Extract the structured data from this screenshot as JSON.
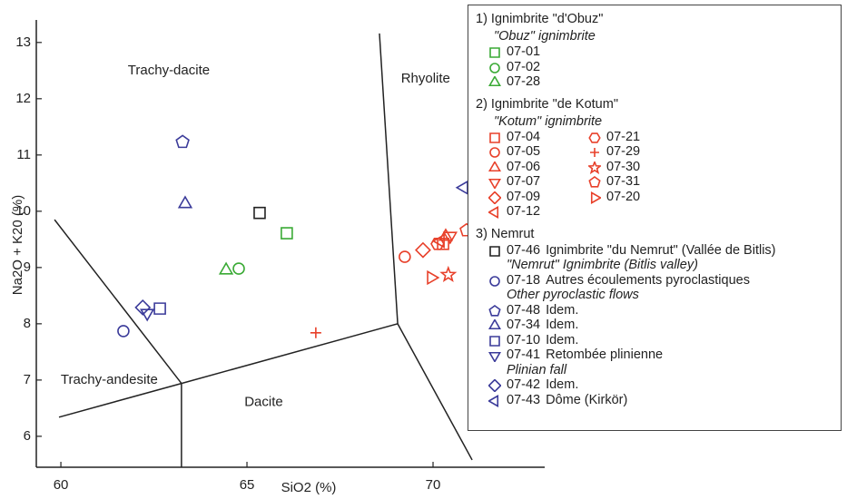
{
  "chart_data": {
    "type": "scatter",
    "xlabel": "SiO2 (%)",
    "ylabel": "Na2O + K20 (%)",
    "xlim": [
      59.34,
      73
    ],
    "ylim": [
      5.45,
      13.4
    ],
    "xticks": [
      60,
      65,
      70
    ],
    "yticks": [
      6,
      7,
      8,
      9,
      10,
      11,
      12,
      13
    ],
    "boundaries": [
      {
        "x": [
          59.83,
          63.24,
          63.24
        ],
        "y": [
          9.85,
          6.94,
          5.45
        ]
      },
      {
        "x": [
          59.95,
          63.24,
          69.05,
          68.56
        ],
        "y": [
          6.34,
          6.94,
          8.0,
          13.16
        ]
      },
      {
        "x": [
          69.05,
          71.05
        ],
        "y": [
          8.0,
          5.58
        ]
      }
    ],
    "field_labels": [
      {
        "text": "Trachy-dacite",
        "x": 62.9,
        "y": 12.5
      },
      {
        "text": "Rhyolite",
        "x": 69.8,
        "y": 12.35
      },
      {
        "text": "Trachy-andesite",
        "x": 61.3,
        "y": 7.0
      },
      {
        "text": "Dacite",
        "x": 65.45,
        "y": 6.6
      }
    ],
    "legend_groups": [
      {
        "title": "1) Ignimbrite \"d'Obuz\"",
        "subtitle": "\"Obuz\" ignimbrite",
        "color": "#3aaa35",
        "series": [
          {
            "name": "07-01",
            "marker": "square",
            "x": 66.07,
            "y": 9.61
          },
          {
            "name": "07-02",
            "marker": "circle",
            "x": 64.78,
            "y": 8.98
          },
          {
            "name": "07-28",
            "marker": "triangle",
            "x": 64.44,
            "y": 8.95
          }
        ]
      },
      {
        "title": "2) Ignimbrite \"de Kotum\"",
        "subtitle": "\"Kotum\" ignimbrite",
        "color": "#e8402a",
        "series": [
          {
            "name": "07-04",
            "marker": "square",
            "x": 70.27,
            "y": 9.42
          },
          {
            "name": "07-05",
            "marker": "circle",
            "x": 69.24,
            "y": 9.19
          },
          {
            "name": "07-06",
            "marker": "triangle",
            "x": 70.34,
            "y": 9.55
          },
          {
            "name": "07-07",
            "marker": "down",
            "x": 70.46,
            "y": 9.56
          },
          {
            "name": "07-09",
            "marker": "diamond",
            "x": 69.73,
            "y": 9.31
          },
          {
            "name": "07-12",
            "marker": "left",
            "x": 70.2,
            "y": 9.47
          },
          {
            "name": "07-21",
            "marker": "hexagon",
            "x": 70.12,
            "y": 9.42
          },
          {
            "name": "07-29",
            "marker": "plus",
            "x": 66.85,
            "y": 7.84
          },
          {
            "name": "07-30",
            "marker": "star",
            "x": 70.41,
            "y": 8.87
          },
          {
            "name": "07-31",
            "marker": "pentagon",
            "x": 70.9,
            "y": 9.66
          },
          {
            "name": "07-20",
            "marker": "right",
            "x": 69.95,
            "y": 8.82
          }
        ]
      },
      {
        "title": "3) Nemrut",
        "series": [
          {
            "name": "07-46",
            "color": "#222222",
            "marker": "square",
            "x": 65.34,
            "y": 9.97,
            "description": "Ignimbrite \"du Nemrut\" (Vallée de Bitlis)",
            "note": "\"Nemrut\" Ignimbrite (Bitlis valley)"
          },
          {
            "name": "07-18",
            "color": "#3b3b9a",
            "marker": "circle",
            "x": 61.68,
            "y": 7.87,
            "description": "Autres écoulements pyroclastiques",
            "note": "Other pyroclastic flows"
          },
          {
            "name": "07-48",
            "color": "#3b3b9a",
            "marker": "pentagon",
            "x": 63.27,
            "y": 11.23,
            "description": "Idem."
          },
          {
            "name": "07-34",
            "color": "#3b3b9a",
            "marker": "triangle",
            "x": 63.34,
            "y": 10.13,
            "description": "Idem."
          },
          {
            "name": "07-10",
            "color": "#3b3b9a",
            "marker": "square",
            "x": 62.66,
            "y": 8.27,
            "description": "Idem."
          },
          {
            "name": "07-41",
            "color": "#3b3b9a",
            "marker": "down",
            "x": 62.32,
            "y": 8.19,
            "description": "Retombée plinienne",
            "note": "Plinian fall"
          },
          {
            "name": "07-42",
            "color": "#3b3b9a",
            "marker": "diamond",
            "x": 62.2,
            "y": 8.29,
            "description": "Idem."
          },
          {
            "name": "07-43",
            "color": "#3b3b9a",
            "marker": "left",
            "x": 70.83,
            "y": 10.42,
            "description": "Dôme (Kirkör)"
          }
        ]
      }
    ]
  }
}
